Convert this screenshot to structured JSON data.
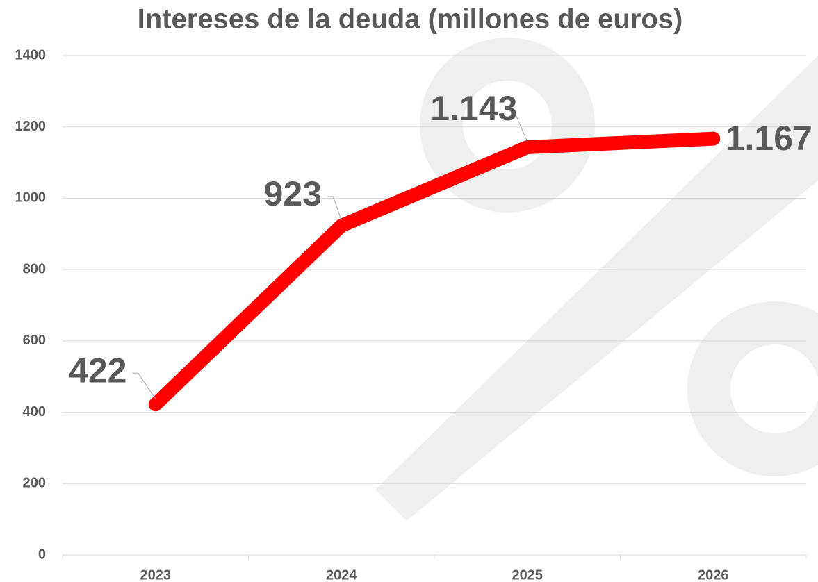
{
  "chart_data": {
    "type": "line",
    "title": "Intereses de la deuda (millones de euros)",
    "categories": [
      "2023",
      "2024",
      "2025",
      "2026"
    ],
    "series": [
      {
        "name": "Intereses",
        "color": "#ff0000",
        "values": [
          422,
          923,
          1143,
          1167
        ],
        "value_labels": [
          "422",
          "923",
          "1.143",
          "1.167"
        ]
      }
    ],
    "ylim": [
      0,
      1400
    ],
    "yticks": [
      0,
      200,
      400,
      600,
      800,
      1000,
      1200,
      1400
    ],
    "grid": true
  }
}
